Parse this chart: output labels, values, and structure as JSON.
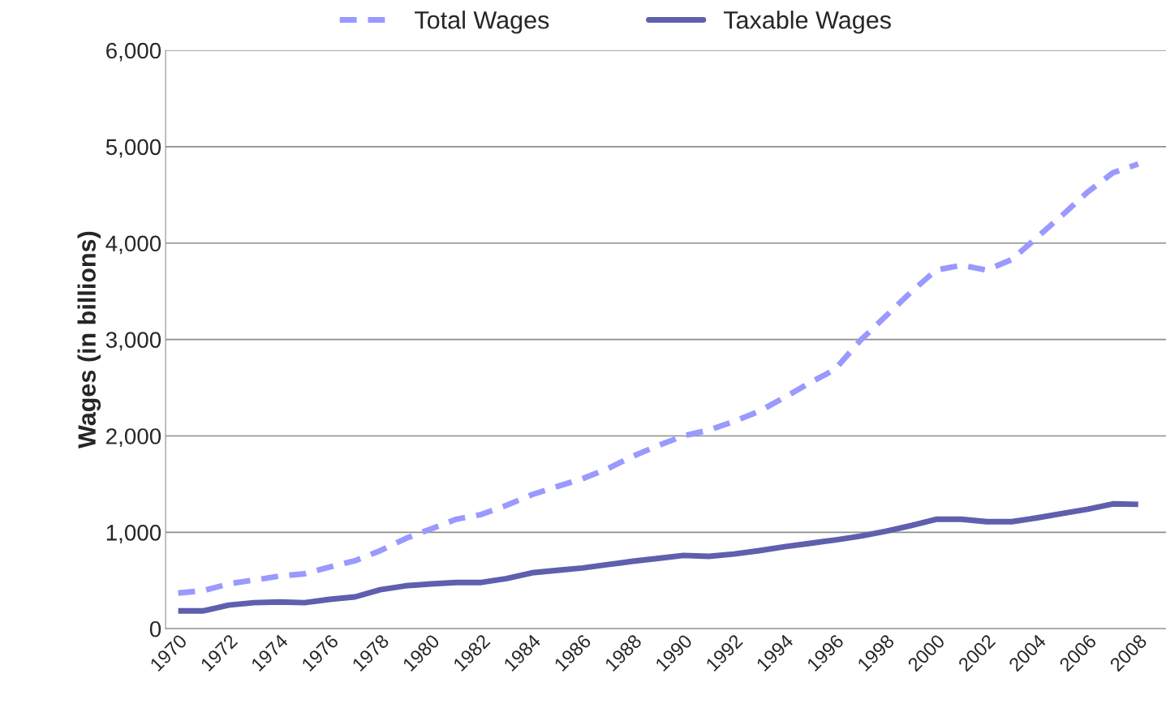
{
  "chart_data": {
    "type": "line",
    "ylabel": "Wages (in billions)",
    "x": [
      1970,
      1971,
      1972,
      1973,
      1974,
      1975,
      1976,
      1977,
      1978,
      1979,
      1980,
      1981,
      1982,
      1983,
      1984,
      1985,
      1986,
      1987,
      1988,
      1989,
      1990,
      1991,
      1992,
      1993,
      1994,
      1995,
      1996,
      1997,
      1998,
      1999,
      2000,
      2001,
      2002,
      2003,
      2004,
      2005,
      2006,
      2007,
      2008
    ],
    "series": [
      {
        "name": "Total Wages",
        "color": "#9999ff",
        "line_style": "dashed",
        "values": [
          370,
          395,
          465,
          505,
          545,
          570,
          640,
          705,
          810,
          935,
          1035,
          1135,
          1185,
          1280,
          1390,
          1475,
          1555,
          1660,
          1790,
          1900,
          2000,
          2060,
          2150,
          2255,
          2400,
          2550,
          2690,
          2990,
          3240,
          3490,
          3720,
          3770,
          3720,
          3830,
          4060,
          4290,
          4530,
          4730,
          4820
        ]
      },
      {
        "name": "Taxable Wages",
        "color": "#5f5fae",
        "line_style": "solid",
        "values": [
          185,
          185,
          245,
          270,
          278,
          270,
          305,
          330,
          405,
          445,
          465,
          480,
          480,
          520,
          580,
          605,
          630,
          665,
          700,
          730,
          760,
          750,
          775,
          810,
          850,
          885,
          920,
          960,
          1010,
          1070,
          1135,
          1135,
          1110,
          1110,
          1150,
          1195,
          1240,
          1295,
          1290
        ]
      }
    ],
    "xlim": [
      1969.5,
      2009.1
    ],
    "xticks": [
      1970,
      1972,
      1974,
      1976,
      1978,
      1980,
      1982,
      1984,
      1986,
      1988,
      1990,
      1992,
      1994,
      1996,
      1998,
      2000,
      2002,
      2004,
      2006,
      2008
    ],
    "ylim": [
      0,
      6000
    ],
    "yticks": [
      {
        "value": 0,
        "label": "0"
      },
      {
        "value": 1000,
        "label": "1,000"
      },
      {
        "value": 2000,
        "label": "2,000"
      },
      {
        "value": 3000,
        "label": "3,000"
      },
      {
        "value": 4000,
        "label": "4,000"
      },
      {
        "value": 5000,
        "label": "5,000"
      },
      {
        "value": 6000,
        "label": "6,000"
      }
    ],
    "grid": "y",
    "legend": "top",
    "marker": "none"
  }
}
